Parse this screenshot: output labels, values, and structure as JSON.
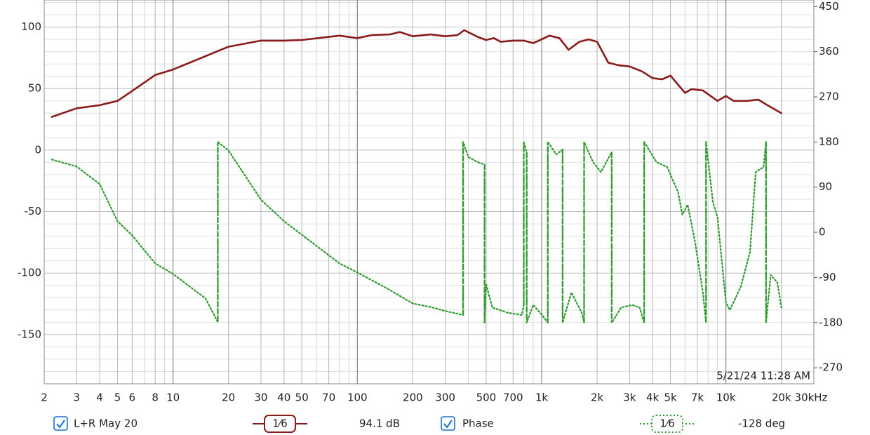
{
  "chart_data": {
    "type": "line",
    "xscale": "log",
    "grid": true,
    "xlim": [
      2,
      30000
    ],
    "xticks": [
      2,
      3,
      4,
      5,
      6,
      8,
      10,
      20,
      30,
      40,
      50,
      70,
      100,
      200,
      300,
      500,
      700,
      {
        "value": 1000,
        "label": "1k"
      },
      {
        "value": 2000,
        "label": "2k"
      },
      {
        "value": 3000,
        "label": "3k"
      },
      {
        "value": 4000,
        "label": "4k"
      },
      {
        "value": 5000,
        "label": "5k"
      },
      {
        "value": 7000,
        "label": "7k"
      },
      {
        "value": 10000,
        "label": "10k"
      },
      {
        "value": 20000,
        "label": "20k"
      },
      {
        "value": 30000,
        "label": "30kHz"
      }
    ],
    "ylim": [
      -190,
      122
    ],
    "yticks": [
      -150,
      -100,
      -50,
      0,
      50,
      100
    ],
    "y2lim": [
      -302,
      463
    ],
    "y2ticks": [
      -270,
      -180,
      -90,
      0,
      90,
      180,
      270,
      360,
      450
    ],
    "annotation": "5/21/24 11:28 AM",
    "series": [
      {
        "name": "L+R May 20",
        "color": "#8b1a1a",
        "checked": true,
        "smoothing": "1⁄6",
        "readout": "94.1 dB",
        "x": [
          2.2,
          3,
          4,
          5,
          6,
          8,
          10,
          20,
          30,
          40,
          50,
          70,
          80,
          100,
          120,
          150,
          170,
          200,
          250,
          300,
          350,
          380,
          450,
          500,
          550,
          600,
          700,
          800,
          900,
          1000,
          1100,
          1250,
          1400,
          1600,
          1800,
          2000,
          2300,
          2600,
          3000,
          3500,
          4000,
          4500,
          5000,
          6000,
          6500,
          7500,
          9000,
          10000,
          11000,
          13000,
          15000,
          17000,
          20000
        ],
        "values": [
          27,
          34,
          36.5,
          40,
          48,
          61,
          65.5,
          84,
          89,
          89,
          89.5,
          92,
          93,
          91,
          93.5,
          94,
          96,
          92.5,
          94,
          92.5,
          93.5,
          97.5,
          92,
          89.5,
          91,
          88,
          89,
          89,
          87,
          90,
          93,
          91,
          81.5,
          88,
          90,
          88,
          71,
          69,
          68,
          64,
          58.5,
          57.5,
          60.5,
          46.5,
          49.5,
          48.5,
          40,
          44,
          40,
          40,
          41,
          36,
          30
        ]
      },
      {
        "name": "Phase",
        "color": "#2e9b2e",
        "axis": "y2",
        "checked": true,
        "smoothing": "1⁄6",
        "readout": "-128 deg",
        "x": [
          2.2,
          3,
          4,
          5,
          6,
          8,
          10,
          15,
          17.5,
          17.5,
          20,
          30,
          40,
          60,
          80,
          100,
          150,
          200,
          250,
          300,
          375,
          375,
          400,
          450,
          490,
          490,
          500,
          540,
          650,
          780,
          800,
          800,
          830,
          830,
          900,
          980,
          1080,
          1080,
          1200,
          1300,
          1300,
          1450,
          1650,
          1700,
          1700,
          1900,
          2100,
          2400,
          2400,
          2700,
          3100,
          3400,
          3600,
          3600,
          4200,
          4800,
          5500,
          5800,
          6200,
          6800,
          7500,
          7800,
          7800,
          8500,
          9000,
          10000,
          10500,
          12000,
          13500,
          14500,
          16000,
          16500,
          16500,
          17500,
          19000,
          20000
        ],
        "values": [
          145,
          131,
          96,
          22,
          -6,
          -62,
          -83,
          -132,
          -179,
          180,
          163,
          65,
          22,
          -27,
          -62,
          -80,
          -115,
          -142,
          -149,
          -157,
          -165,
          180,
          150,
          140,
          135,
          -180,
          -104,
          -150,
          -160,
          -165,
          -145,
          180,
          160,
          -180,
          -145,
          -160,
          -180,
          180,
          155,
          165,
          -180,
          -120,
          -160,
          -180,
          180,
          140,
          120,
          160,
          -180,
          -150,
          -145,
          -150,
          -180,
          180,
          140,
          130,
          80,
          35,
          55,
          -20,
          -120,
          -180,
          180,
          60,
          30,
          -140,
          -155,
          -110,
          -40,
          120,
          130,
          180,
          -180,
          -85,
          -100,
          -150
        ]
      }
    ]
  }
}
